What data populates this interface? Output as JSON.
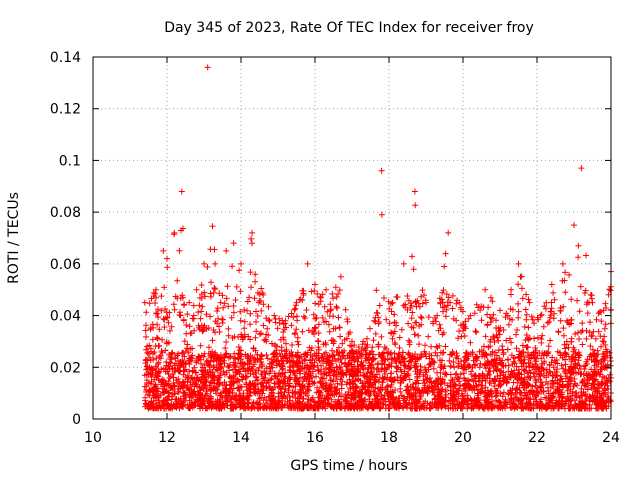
{
  "chart_data": {
    "type": "scatter",
    "title": "Day 345 of 2023, Rate Of TEC Index for receiver froy",
    "xlabel": "GPS time / hours",
    "ylabel": "ROTI / TECUs",
    "xlim": [
      10,
      24
    ],
    "ylim": [
      0,
      0.14
    ],
    "x_ticks": [
      "10",
      "12",
      "14",
      "16",
      "18",
      "20",
      "22",
      "24"
    ],
    "y_ticks": [
      "0",
      "0.02",
      "0.04",
      "0.06",
      "0.08",
      "0.1",
      "0.12",
      "0.14"
    ],
    "grid": true,
    "marker": "+",
    "color": "#ff0000",
    "envelope": [
      [
        11.4,
        0.045
      ],
      [
        11.7,
        0.05
      ],
      [
        11.9,
        0.065
      ],
      [
        12.0,
        0.062
      ],
      [
        12.2,
        0.072
      ],
      [
        12.4,
        0.088
      ],
      [
        12.6,
        0.045
      ],
      [
        12.8,
        0.05
      ],
      [
        13.0,
        0.06
      ],
      [
        13.1,
        0.136
      ],
      [
        13.3,
        0.06
      ],
      [
        13.6,
        0.065
      ],
      [
        13.8,
        0.068
      ],
      [
        14.0,
        0.06
      ],
      [
        14.3,
        0.072
      ],
      [
        14.6,
        0.048
      ],
      [
        14.9,
        0.04
      ],
      [
        15.2,
        0.038
      ],
      [
        15.5,
        0.045
      ],
      [
        15.8,
        0.06
      ],
      [
        16.0,
        0.052
      ],
      [
        16.3,
        0.05
      ],
      [
        16.7,
        0.055
      ],
      [
        17.0,
        0.03
      ],
      [
        17.3,
        0.03
      ],
      [
        17.6,
        0.038
      ],
      [
        17.8,
        0.096
      ],
      [
        18.1,
        0.045
      ],
      [
        18.4,
        0.06
      ],
      [
        18.7,
        0.088
      ],
      [
        19.0,
        0.045
      ],
      [
        19.3,
        0.04
      ],
      [
        19.6,
        0.072
      ],
      [
        19.9,
        0.045
      ],
      [
        20.2,
        0.04
      ],
      [
        20.6,
        0.05
      ],
      [
        21.0,
        0.042
      ],
      [
        21.3,
        0.05
      ],
      [
        21.5,
        0.06
      ],
      [
        21.8,
        0.045
      ],
      [
        22.1,
        0.04
      ],
      [
        22.4,
        0.052
      ],
      [
        22.7,
        0.06
      ],
      [
        23.0,
        0.075
      ],
      [
        23.2,
        0.097
      ],
      [
        23.5,
        0.045
      ],
      [
        23.8,
        0.042
      ],
      [
        24.0,
        0.057
      ]
    ]
  }
}
